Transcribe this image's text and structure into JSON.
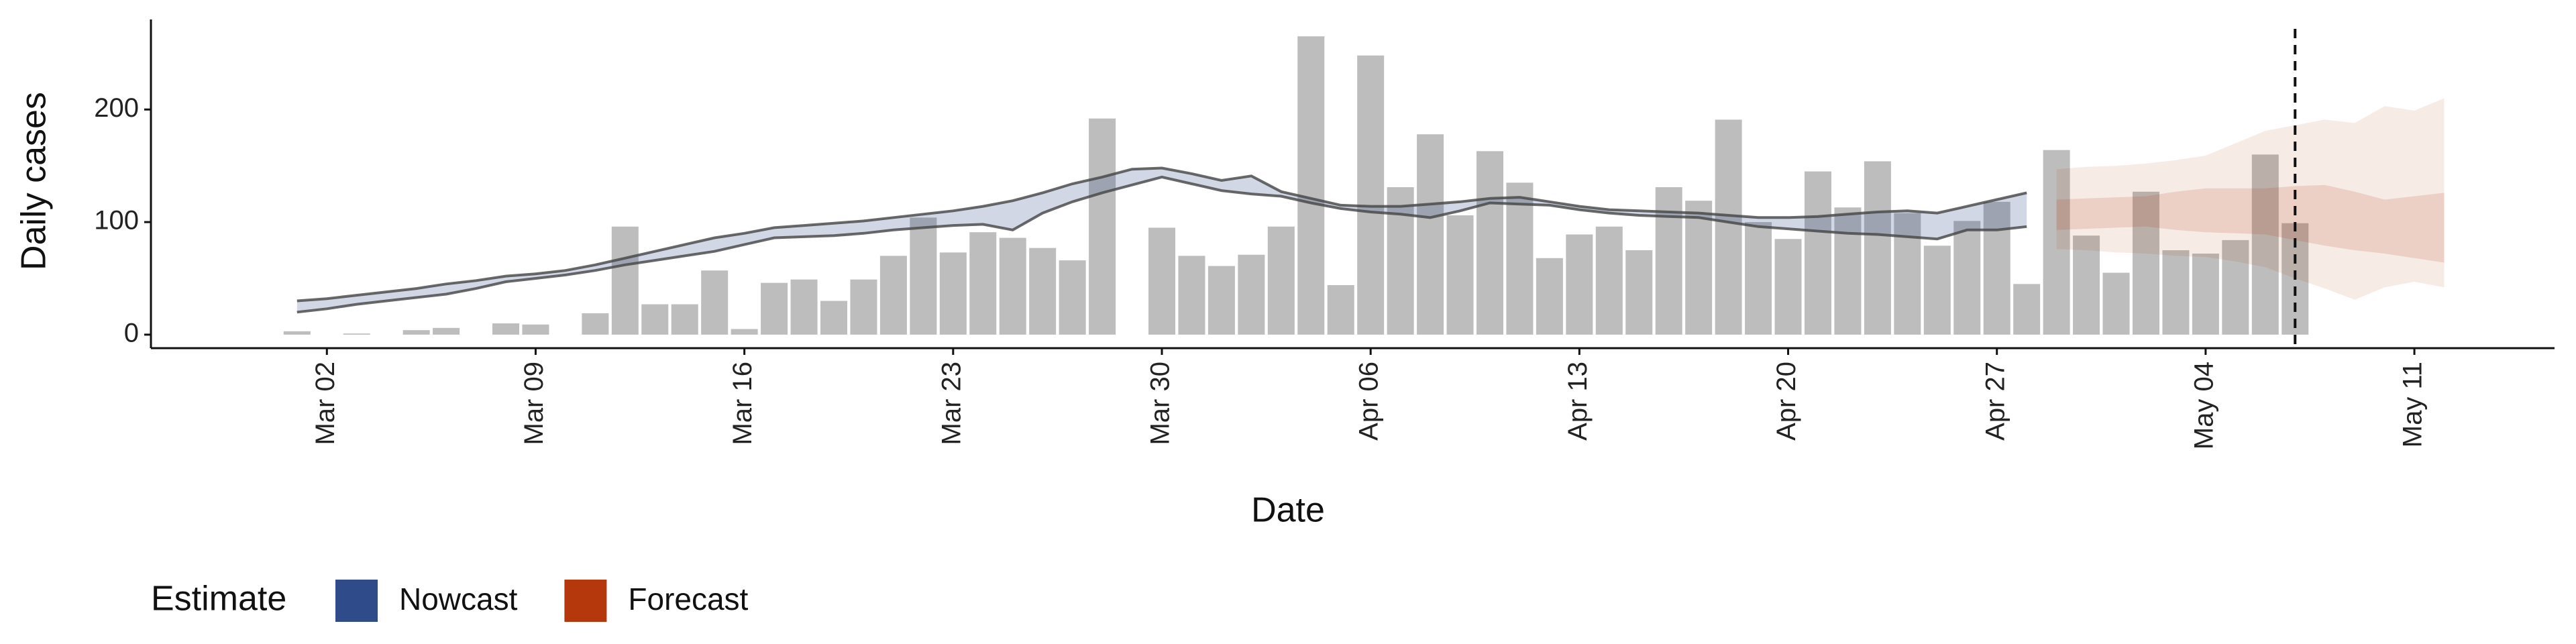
{
  "chart_data": {
    "type": "bar",
    "x_label": "Date",
    "y_label": "Daily cases",
    "x": [
      "Mar 01",
      "Mar 02",
      "Mar 03",
      "Mar 04",
      "Mar 05",
      "Mar 06",
      "Mar 07",
      "Mar 08",
      "Mar 09",
      "Mar 10",
      "Mar 11",
      "Mar 12",
      "Mar 13",
      "Mar 14",
      "Mar 15",
      "Mar 16",
      "Mar 17",
      "Mar 18",
      "Mar 19",
      "Mar 20",
      "Mar 21",
      "Mar 22",
      "Mar 23",
      "Mar 24",
      "Mar 25",
      "Mar 26",
      "Mar 27",
      "Mar 28",
      "Mar 29",
      "Mar 30",
      "Mar 31",
      "Apr 01",
      "Apr 02",
      "Apr 03",
      "Apr 04",
      "Apr 05",
      "Apr 06",
      "Apr 07",
      "Apr 08",
      "Apr 09",
      "Apr 10",
      "Apr 11",
      "Apr 12",
      "Apr 13",
      "Apr 14",
      "Apr 15",
      "Apr 16",
      "Apr 17",
      "Apr 18",
      "Apr 19",
      "Apr 20",
      "Apr 21",
      "Apr 22",
      "Apr 23",
      "Apr 24",
      "Apr 25",
      "Apr 26",
      "Apr 27",
      "Apr 28",
      "Apr 29",
      "Apr 30",
      "May 01",
      "May 02",
      "May 03",
      "May 04",
      "May 05",
      "May 06",
      "May 07"
    ],
    "values": [
      3,
      0,
      1,
      0,
      4,
      6,
      0,
      10,
      9,
      0,
      19,
      96,
      27,
      27,
      57,
      5,
      46,
      49,
      30,
      49,
      70,
      104,
      73,
      91,
      86,
      77,
      66,
      192,
      0,
      95,
      70,
      61,
      71,
      96,
      265,
      44,
      248,
      131,
      178,
      106,
      163,
      135,
      68,
      89,
      96,
      75,
      131,
      119,
      191,
      100,
      85,
      145,
      113,
      154,
      108,
      79,
      101,
      118,
      45,
      164,
      88,
      55,
      127,
      75,
      72,
      84,
      160,
      99
    ],
    "color": "#bdbdbd",
    "series": [
      {
        "name": "Nowcast",
        "color": "#2f4b8a",
        "x": [
          "Mar 01",
          "Mar 02",
          "Mar 03",
          "Mar 04",
          "Mar 05",
          "Mar 06",
          "Mar 07",
          "Mar 08",
          "Mar 09",
          "Mar 10",
          "Mar 11",
          "Mar 12",
          "Mar 13",
          "Mar 14",
          "Mar 15",
          "Mar 16",
          "Mar 17",
          "Mar 18",
          "Mar 19",
          "Mar 20",
          "Mar 21",
          "Mar 22",
          "Mar 23",
          "Mar 24",
          "Mar 25",
          "Mar 26",
          "Mar 27",
          "Mar 28",
          "Mar 29",
          "Mar 30",
          "Mar 31",
          "Apr 01",
          "Apr 02",
          "Apr 03",
          "Apr 04",
          "Apr 05",
          "Apr 06",
          "Apr 07",
          "Apr 08",
          "Apr 09",
          "Apr 10",
          "Apr 11",
          "Apr 12",
          "Apr 13",
          "Apr 14",
          "Apr 15",
          "Apr 16",
          "Apr 17",
          "Apr 18",
          "Apr 19",
          "Apr 20",
          "Apr 21",
          "Apr 22",
          "Apr 23",
          "Apr 24",
          "Apr 25",
          "Apr 26",
          "Apr 27",
          "Apr 28"
        ],
        "lower": [
          20,
          23,
          27,
          30,
          33,
          36,
          41,
          47,
          50,
          53,
          57,
          62,
          66,
          70,
          74,
          80,
          86,
          87,
          88,
          90,
          93,
          95,
          97,
          98,
          93,
          108,
          118,
          126,
          133,
          140,
          134,
          128,
          125,
          123,
          117,
          112,
          109,
          107,
          104,
          110,
          117,
          116,
          115,
          111,
          108,
          106,
          105,
          104,
          100,
          96,
          94,
          92,
          90,
          89,
          87,
          85,
          93,
          93,
          96
        ],
        "upper": [
          30,
          32,
          35,
          38,
          41,
          45,
          48,
          52,
          54,
          57,
          62,
          68,
          74,
          80,
          86,
          90,
          95,
          97,
          99,
          101,
          104,
          107,
          110,
          114,
          119,
          126,
          134,
          140,
          147,
          148,
          143,
          137,
          141,
          127,
          121,
          115,
          114,
          114,
          116,
          118,
          121,
          122,
          118,
          114,
          111,
          110,
          109,
          108,
          106,
          104,
          104,
          105,
          107,
          109,
          110,
          108,
          114,
          120,
          126
        ]
      },
      {
        "name": "Forecast",
        "color": "#b5380c",
        "x": [
          "Apr 29",
          "Apr 30",
          "May 01",
          "May 02",
          "May 03",
          "May 04",
          "May 05",
          "May 06",
          "May 07",
          "May 08",
          "May 09",
          "May 10",
          "May 11",
          "May 12"
        ],
        "lower": [
          76,
          75,
          73,
          72,
          70,
          69,
          65,
          60,
          50,
          41,
          31,
          42,
          47,
          42
        ],
        "upper": [
          147,
          149,
          150,
          152,
          155,
          159,
          170,
          181,
          186,
          191,
          188,
          203,
          199,
          210
        ],
        "inner_lower": [
          93,
          94,
          95,
          96,
          93,
          91,
          90,
          89,
          84,
          79,
          75,
          72,
          68,
          64
        ],
        "inner_upper": [
          120,
          121,
          122,
          123,
          127,
          130,
          130,
          130,
          132,
          133,
          127,
          120,
          123,
          126
        ]
      }
    ],
    "vline_x": "May 07",
    "ylim": [
      -12,
      280
    ],
    "yticks": [
      0,
      100,
      200
    ],
    "xticks": [
      "Mar 02",
      "Mar 09",
      "Mar 16",
      "Mar 23",
      "Mar 30",
      "Apr 06",
      "Apr 13",
      "Apr 20",
      "Apr 27",
      "May 04",
      "May 11"
    ],
    "legend_title": "Estimate",
    "legend_position": "bottom-left"
  }
}
